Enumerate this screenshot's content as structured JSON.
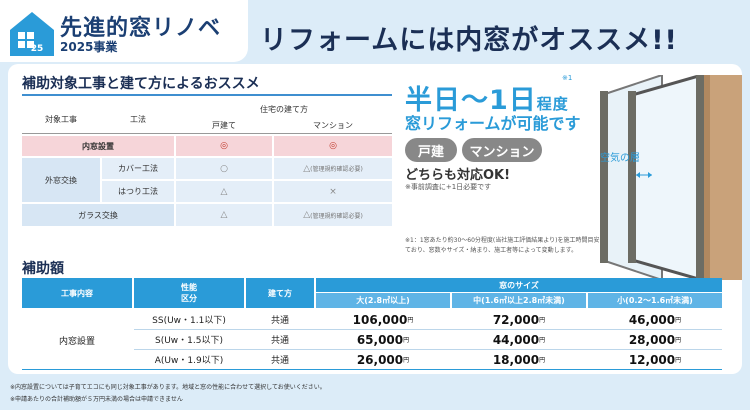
{
  "header": {
    "logo_title": "先進的窓リノベ",
    "logo_year_mark": "'25",
    "logo_sub": "2025事業",
    "headline": "リフォームには内窓がオススメ!!"
  },
  "method_section": {
    "title": "補助対象工事と建て方によるおススメ",
    "col_work": "対象工事",
    "col_method": "工法",
    "col_housing": "住宅の建て方",
    "col_detached": "戸建て",
    "col_mansion": "マンション",
    "rows": [
      {
        "work": "内窓設置",
        "method": "",
        "detached": "◎",
        "mansion": "◎"
      },
      {
        "work": "外窓交換",
        "method": "カバー工法",
        "detached": "○",
        "mansion": "△",
        "mansion_note": "(管理規約確認必要)"
      },
      {
        "work": "",
        "method": "はつり工法",
        "detached": "△",
        "mansion": "×"
      },
      {
        "work": "ガラス交換",
        "method": "",
        "detached": "△",
        "mansion": "△",
        "mansion_note": "(管理規約確認必要)"
      }
    ]
  },
  "promo": {
    "line1_main": "半日〜1日",
    "line1_small": "程度",
    "line1_sup": "※1",
    "line2": "窓リフォームが可能です",
    "pill_detached": "戸建",
    "pill_mansion": "マンション",
    "both_ok": "どちらも対応OK!",
    "pre_note": "※事前調査に+1日必要です",
    "footnote1": "※1：1窓あたり約30〜60分程度(当社施工評価結果より)を施工時間目安にしており、窓数やサイズ・納まり、施工者等によって変動します。",
    "air_layer": "空気の層"
  },
  "subsidy": {
    "title": "補助額",
    "col_work": "工事内容",
    "col_perf_line1": "性能",
    "col_perf_line2": "区分",
    "col_housing": "建て方",
    "col_size": "窓のサイズ",
    "size_large": "大(2.8㎡以上)",
    "size_mid": "中(1.6㎡以上2.8㎡未満)",
    "size_small": "小(0.2〜1.6㎡未満)",
    "work": "内窓設置",
    "yen": "円",
    "rows": [
      {
        "perf": "SS(Uw・1.1以下)",
        "housing": "共通",
        "large": "106,000",
        "mid": "72,000",
        "small": "46,000"
      },
      {
        "perf": "S(Uw・1.5以下)",
        "housing": "共通",
        "large": "65,000",
        "mid": "44,000",
        "small": "28,000"
      },
      {
        "perf": "A(Uw・1.9以下)",
        "housing": "共通",
        "large": "26,000",
        "mid": "18,000",
        "small": "12,000"
      }
    ]
  },
  "notes": {
    "note1": "※内窓設置については子育てエコにも同じ対象工事があります。地域と窓の性能に合わせて選択してお使いください。",
    "note2": "※申請あたりの合計補助額が５万円未満の場合は申請できません"
  },
  "colors": {
    "accent_blue": "#2a9bd8",
    "navy": "#1b2f55",
    "pink_row": "#f6d5d9",
    "background": "#dcecf8"
  }
}
